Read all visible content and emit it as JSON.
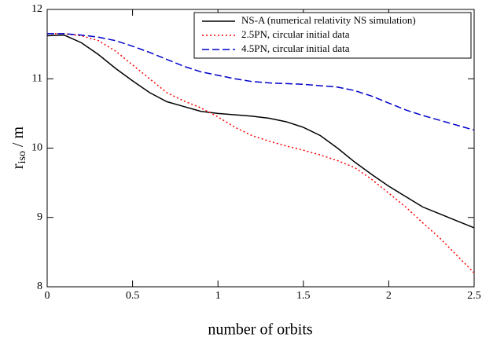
{
  "chart_data": {
    "type": "line",
    "x_label": "number of orbits",
    "y_label": {
      "main": "r",
      "subscript": "iso",
      "unit": "/ m"
    },
    "x": [
      0,
      0.1,
      0.2,
      0.3,
      0.4,
      0.5,
      0.6,
      0.7,
      0.8,
      0.9,
      1.0,
      1.1,
      1.2,
      1.3,
      1.4,
      1.5,
      1.6,
      1.7,
      1.8,
      1.9,
      2.0,
      2.1,
      2.2,
      2.3,
      2.4,
      2.5
    ],
    "series": [
      {
        "name": "NS-A (numerical relativity NS simulation)",
        "color": "#000000",
        "dash": "none",
        "values": [
          11.62,
          11.63,
          11.52,
          11.35,
          11.15,
          10.97,
          10.8,
          10.67,
          10.6,
          10.53,
          10.5,
          10.48,
          10.46,
          10.43,
          10.38,
          10.3,
          10.18,
          10.0,
          9.8,
          9.62,
          9.45,
          9.3,
          9.15,
          9.05,
          8.95,
          8.85
        ]
      },
      {
        "name": "2.5PN, circular initial data",
        "color": "#ff0000",
        "dash": "dotted",
        "values": [
          11.65,
          11.65,
          11.62,
          11.55,
          11.4,
          11.2,
          11.0,
          10.8,
          10.68,
          10.58,
          10.45,
          10.3,
          10.18,
          10.1,
          10.03,
          9.97,
          9.9,
          9.82,
          9.72,
          9.55,
          9.35,
          9.15,
          8.92,
          8.7,
          8.45,
          8.2
        ]
      },
      {
        "name": "4.5PN, circular initial data",
        "color": "#0000cc",
        "dash": "dashed",
        "values": [
          11.65,
          11.65,
          11.63,
          11.6,
          11.55,
          11.47,
          11.38,
          11.28,
          11.18,
          11.1,
          11.05,
          11.0,
          10.96,
          10.94,
          10.93,
          10.92,
          10.9,
          10.88,
          10.83,
          10.75,
          10.65,
          10.55,
          10.47,
          10.4,
          10.33,
          10.26
        ]
      }
    ],
    "xlim": [
      0,
      2.5
    ],
    "xticks": [
      0,
      0.5,
      1,
      1.5,
      2,
      2.5
    ],
    "ylim": [
      8,
      12
    ],
    "yticks": [
      8,
      9,
      10,
      11,
      12
    ],
    "grid": false,
    "legend_position": "upper right"
  }
}
